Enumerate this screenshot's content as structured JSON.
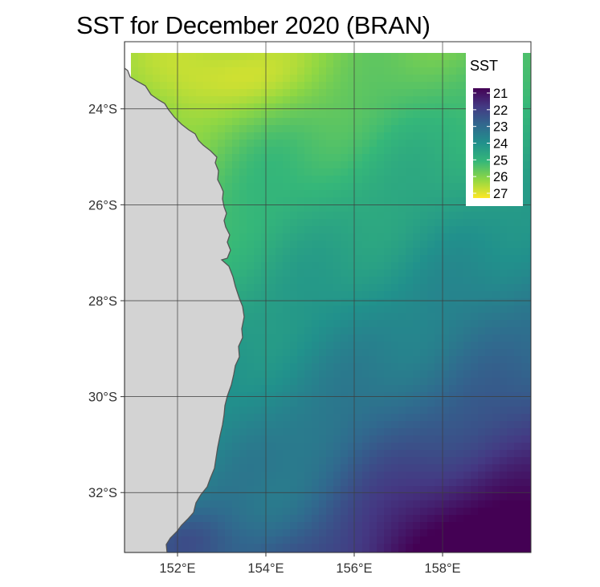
{
  "title": "SST for December 2020 (BRAN)",
  "map": {
    "y_ticks": [
      "24°S",
      "26°S",
      "28°S",
      "30°S",
      "32°S"
    ],
    "x_ticks": [
      "152°E",
      "154°E",
      "156°E",
      "158°E"
    ],
    "y_tick_values": [
      -24,
      -26,
      -28,
      -30,
      -32
    ],
    "x_tick_values": [
      152,
      154,
      156,
      158
    ],
    "lon_range": [
      150.8,
      160.0
    ],
    "lat_range": [
      -33.25,
      -22.6
    ],
    "land_color": "#d3d3d3",
    "coast_color": "#555555",
    "grid_color": "#3d3d3d"
  },
  "legend": {
    "title": "SST",
    "labels": [
      "21",
      "22",
      "23",
      "24",
      "25",
      "26",
      "27"
    ],
    "values": [
      21,
      22,
      23,
      24,
      25,
      26,
      27
    ],
    "colors": [
      "#440154",
      "#443983",
      "#31688e",
      "#21918c",
      "#35b779",
      "#90d743",
      "#fde725"
    ]
  }
}
